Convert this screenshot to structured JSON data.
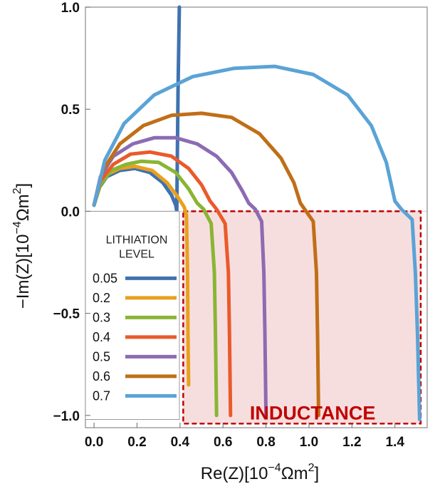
{
  "chart_data": {
    "type": "line",
    "title": "",
    "xlabel": "Re(Z)[10",
    "xlabel_exp": "−4",
    "xlabel_unit": "Ωm",
    "xlabel_unit_exp": "2",
    "xlabel_close": "]",
    "ylabel": "−Im(Z)[10",
    "ylabel_exp": "−4",
    "ylabel_unit": "Ωm",
    "ylabel_unit_exp": "2",
    "ylabel_close": "]",
    "xlim": [
      -0.04,
      1.55
    ],
    "ylim": [
      -1.06,
      1.0
    ],
    "x_ticks": [
      "0.0",
      "0.2",
      "0.4",
      "0.6",
      "0.8",
      "1.0",
      "1.2",
      "1.4"
    ],
    "x_tick_values": [
      0.0,
      0.2,
      0.4,
      0.6,
      0.8,
      1.0,
      1.2,
      1.4
    ],
    "y_ticks": [
      "1.0",
      "0.5",
      "0.0",
      "−0.5",
      "−1.0"
    ],
    "y_tick_values": [
      1.0,
      0.5,
      0.0,
      -0.5,
      -1.0
    ],
    "grid": false,
    "legend": {
      "title_line1": "LITHIATION",
      "title_line2": "LEVEL",
      "position": "left"
    },
    "annotation": {
      "text": "INDUCTANCE",
      "x_range": [
        0.415,
        1.52
      ],
      "y_range": [
        -1.04,
        0.0
      ],
      "color": "#c00000",
      "fill": "#f7dede"
    },
    "series": [
      {
        "name": "0.05",
        "color": "#3f72b0",
        "points": [
          [
            0.0,
            0.03
          ],
          [
            0.02,
            0.11
          ],
          [
            0.06,
            0.17
          ],
          [
            0.12,
            0.2
          ],
          [
            0.19,
            0.21
          ],
          [
            0.26,
            0.19
          ],
          [
            0.32,
            0.14
          ],
          [
            0.36,
            0.08
          ],
          [
            0.38,
            0.03
          ],
          [
            0.385,
            0.0
          ],
          [
            0.388,
            0.3
          ],
          [
            0.391,
            0.6
          ],
          [
            0.397,
            1.0
          ]
        ]
      },
      {
        "name": "0.2",
        "color": "#e8a11d",
        "points": [
          [
            0.0,
            0.03
          ],
          [
            0.02,
            0.12
          ],
          [
            0.06,
            0.18
          ],
          [
            0.12,
            0.21
          ],
          [
            0.19,
            0.22
          ],
          [
            0.27,
            0.2
          ],
          [
            0.34,
            0.14
          ],
          [
            0.39,
            0.07
          ],
          [
            0.42,
            0.02
          ],
          [
            0.43,
            -0.02
          ],
          [
            0.435,
            -0.3
          ],
          [
            0.437,
            -0.6
          ],
          [
            0.44,
            -0.85
          ]
        ]
      },
      {
        "name": "0.3",
        "color": "#8ab534",
        "points": [
          [
            0.0,
            0.03
          ],
          [
            0.03,
            0.13
          ],
          [
            0.08,
            0.2
          ],
          [
            0.15,
            0.23
          ],
          [
            0.22,
            0.245
          ],
          [
            0.3,
            0.24
          ],
          [
            0.38,
            0.19
          ],
          [
            0.44,
            0.11
          ],
          [
            0.48,
            0.04
          ],
          [
            0.51,
            0.01
          ],
          [
            0.545,
            -0.06
          ],
          [
            0.56,
            -0.3
          ],
          [
            0.565,
            -0.6
          ],
          [
            0.57,
            -1.0
          ]
        ]
      },
      {
        "name": "0.4",
        "color": "#ea5a2b",
        "points": [
          [
            0.0,
            0.03
          ],
          [
            0.03,
            0.15
          ],
          [
            0.09,
            0.23
          ],
          [
            0.17,
            0.28
          ],
          [
            0.26,
            0.29
          ],
          [
            0.36,
            0.27
          ],
          [
            0.44,
            0.21
          ],
          [
            0.5,
            0.13
          ],
          [
            0.54,
            0.05
          ],
          [
            0.57,
            0.01
          ],
          [
            0.61,
            -0.06
          ],
          [
            0.625,
            -0.3
          ],
          [
            0.63,
            -0.6
          ],
          [
            0.635,
            -1.0
          ]
        ]
      },
      {
        "name": "0.5",
        "color": "#8c6bb3",
        "points": [
          [
            0.0,
            0.03
          ],
          [
            0.03,
            0.17
          ],
          [
            0.09,
            0.27
          ],
          [
            0.18,
            0.33
          ],
          [
            0.28,
            0.36
          ],
          [
            0.38,
            0.36
          ],
          [
            0.48,
            0.33
          ],
          [
            0.57,
            0.27
          ],
          [
            0.64,
            0.19
          ],
          [
            0.69,
            0.1
          ],
          [
            0.72,
            0.04
          ],
          [
            0.75,
            0.01
          ],
          [
            0.78,
            -0.05
          ],
          [
            0.79,
            -0.3
          ],
          [
            0.795,
            -0.6
          ],
          [
            0.8,
            -1.0
          ]
        ]
      },
      {
        "name": "0.6",
        "color": "#c06f17",
        "points": [
          [
            0.0,
            0.03
          ],
          [
            0.04,
            0.2
          ],
          [
            0.12,
            0.33
          ],
          [
            0.23,
            0.42
          ],
          [
            0.36,
            0.47
          ],
          [
            0.5,
            0.48
          ],
          [
            0.64,
            0.46
          ],
          [
            0.77,
            0.38
          ],
          [
            0.87,
            0.26
          ],
          [
            0.93,
            0.14
          ],
          [
            0.96,
            0.04
          ],
          [
            0.98,
            0.01
          ],
          [
            1.02,
            -0.05
          ],
          [
            1.035,
            -0.3
          ],
          [
            1.04,
            -0.6
          ],
          [
            1.045,
            -1.0
          ]
        ]
      },
      {
        "name": "0.7",
        "color": "#5aa3d6",
        "points": [
          [
            0.0,
            0.03
          ],
          [
            0.05,
            0.25
          ],
          [
            0.14,
            0.43
          ],
          [
            0.28,
            0.57
          ],
          [
            0.46,
            0.66
          ],
          [
            0.65,
            0.7
          ],
          [
            0.84,
            0.71
          ],
          [
            1.02,
            0.67
          ],
          [
            1.18,
            0.57
          ],
          [
            1.29,
            0.42
          ],
          [
            1.36,
            0.24
          ],
          [
            1.4,
            0.05
          ],
          [
            1.43,
            0.01
          ],
          [
            1.48,
            -0.04
          ],
          [
            1.495,
            -0.3
          ],
          [
            1.505,
            -0.6
          ],
          [
            1.515,
            -1.02
          ]
        ]
      }
    ]
  }
}
